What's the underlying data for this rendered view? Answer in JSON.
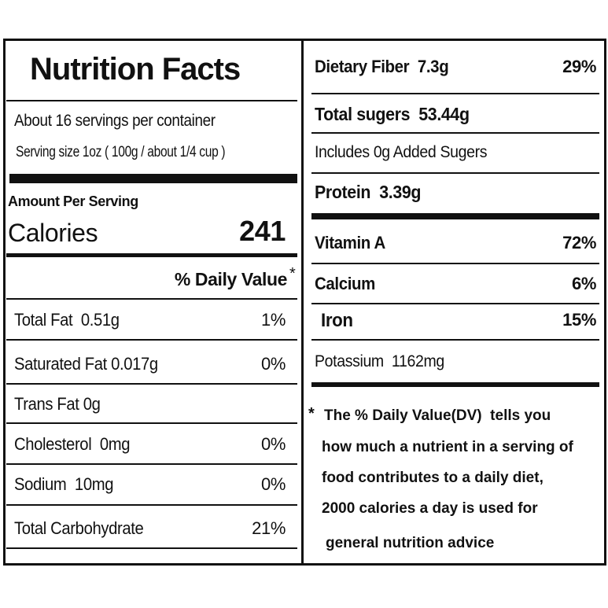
{
  "left": {
    "title": "Nutrition Facts",
    "servings": "About 16 servings per container",
    "serving_size": "Serving size 1oz ( 100g / about 1/4 cup )",
    "amount_per_serving": "Amount Per Serving",
    "calories": {
      "label": "Calories",
      "value": 241
    },
    "daily_value": {
      "label": "% Daily Value",
      "mark": "*"
    },
    "nutrients": [
      {
        "name": "Total Fat  0.51g",
        "dv": "1%"
      },
      {
        "name": "Saturated Fat 0.017g",
        "dv": "0%"
      },
      {
        "name": "Trans Fat 0g"
      },
      {
        "name": "Cholesterol  0mg",
        "dv": "0%"
      },
      {
        "name": "Sodium  10mg",
        "dv": "0%"
      },
      {
        "name": "Total Carbohydrate",
        "dv": "21%"
      }
    ]
  },
  "right": {
    "nutrients": [
      {
        "name": "Dietary Fiber  7.3g",
        "dv": "29%"
      },
      {
        "name": "Total sugers  53.44g"
      },
      {
        "name": "Includes 0g Added Sugers"
      },
      {
        "name": "Protein  3.39g"
      },
      {
        "name": "Vitamin A",
        "dv": "72%"
      },
      {
        "name": "Calcium",
        "dv": "6%"
      },
      {
        "name": "Iron",
        "dv": "15%"
      },
      {
        "name": "Potassium  1162mg"
      }
    ],
    "footnote": {
      "mark": "*",
      "lines": [
        "The % Daily Value(DV)  tells you",
        "how much a nutrient in a serving of",
        "food contributes to a daily diet,",
        "2000 calories a day is used for",
        "general nutrition advice"
      ]
    }
  }
}
